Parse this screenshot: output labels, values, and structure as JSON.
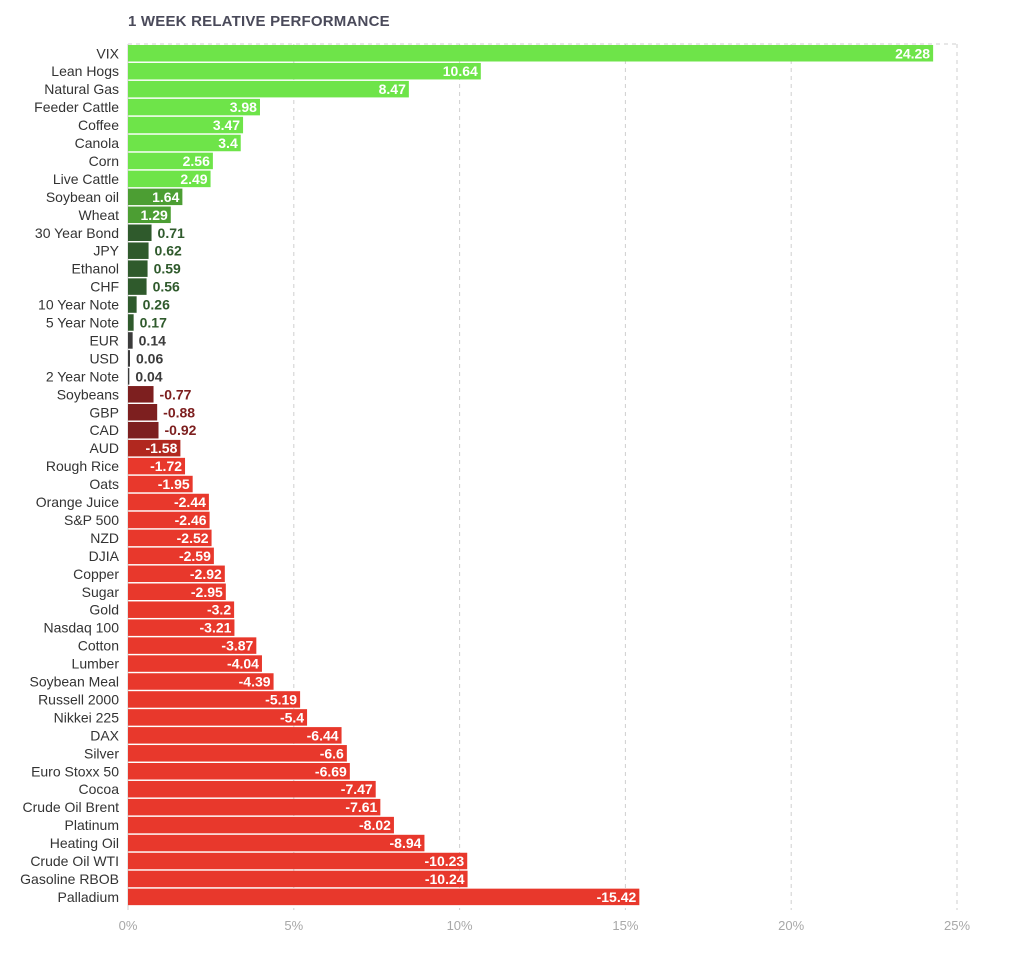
{
  "title": "1 WEEK RELATIVE PERFORMANCE",
  "chart_data": {
    "type": "bar",
    "orientation": "horizontal",
    "title": "1 WEEK RELATIVE PERFORMANCE",
    "xlabel": "",
    "ylabel": "",
    "xlim": [
      0,
      25
    ],
    "x_ticks": [
      "0%",
      "5%",
      "10%",
      "15%",
      "20%",
      "25%"
    ],
    "x_tick_values": [
      0,
      5,
      10,
      15,
      20,
      25
    ],
    "grid": true,
    "bar_length": "absolute value",
    "colors": {
      "positive_light": "#6ee449",
      "positive_mid": "#4c9e33",
      "positive_dark": "#2f5a2c",
      "neutral": "#3b3b3b",
      "negative_dark": "#7d1f1f",
      "negative_mid": "#b1281f",
      "negative_light": "#e8382c"
    },
    "categories": [
      "VIX",
      "Lean Hogs",
      "Natural Gas",
      "Feeder Cattle",
      "Coffee",
      "Canola",
      "Corn",
      "Live Cattle",
      "Soybean oil",
      "Wheat",
      "30 Year Bond",
      "JPY",
      "Ethanol",
      "CHF",
      "10 Year Note",
      "5 Year Note",
      "EUR",
      "USD",
      "2 Year Note",
      "Soybeans",
      "GBP",
      "CAD",
      "AUD",
      "Rough Rice",
      "Oats",
      "Orange Juice",
      "S&P 500",
      "NZD",
      "DJIA",
      "Copper",
      "Sugar",
      "Gold",
      "Nasdaq 100",
      "Cotton",
      "Lumber",
      "Soybean Meal",
      "Russell 2000",
      "Nikkei 225",
      "DAX",
      "Silver",
      "Euro Stoxx 50",
      "Cocoa",
      "Crude Oil Brent",
      "Platinum",
      "Heating Oil",
      "Crude Oil WTI",
      "Gasoline RBOB",
      "Palladium"
    ],
    "values": [
      24.28,
      10.64,
      8.47,
      3.98,
      3.47,
      3.4,
      2.56,
      2.49,
      1.64,
      1.29,
      0.71,
      0.62,
      0.59,
      0.56,
      0.26,
      0.17,
      0.14,
      0.06,
      0.04,
      -0.77,
      -0.88,
      -0.92,
      -1.58,
      -1.72,
      -1.95,
      -2.44,
      -2.46,
      -2.52,
      -2.59,
      -2.92,
      -2.95,
      -3.2,
      -3.21,
      -3.87,
      -4.04,
      -4.39,
      -5.19,
      -5.4,
      -6.44,
      -6.6,
      -6.69,
      -7.47,
      -7.61,
      -8.02,
      -8.94,
      -10.23,
      -10.24,
      -15.42
    ],
    "value_labels": [
      "24.28",
      "10.64",
      "8.47",
      "3.98",
      "3.47",
      "3.4",
      "2.56",
      "2.49",
      "1.64",
      "1.29",
      "0.71",
      "0.62",
      "0.59",
      "0.56",
      "0.26",
      "0.17",
      "0.14",
      "0.06",
      "0.04",
      "-0.77",
      "-0.88",
      "-0.92",
      "-1.58",
      "-1.72",
      "-1.95",
      "-2.44",
      "-2.46",
      "-2.52",
      "-2.59",
      "-2.92",
      "-2.95",
      "-3.2",
      "-3.21",
      "-3.87",
      "-4.04",
      "-4.39",
      "-5.19",
      "-5.4",
      "-6.44",
      "-6.6",
      "-6.69",
      "-7.47",
      "-7.61",
      "-8.02",
      "-8.94",
      "-10.23",
      "-10.24",
      "-15.42"
    ]
  }
}
